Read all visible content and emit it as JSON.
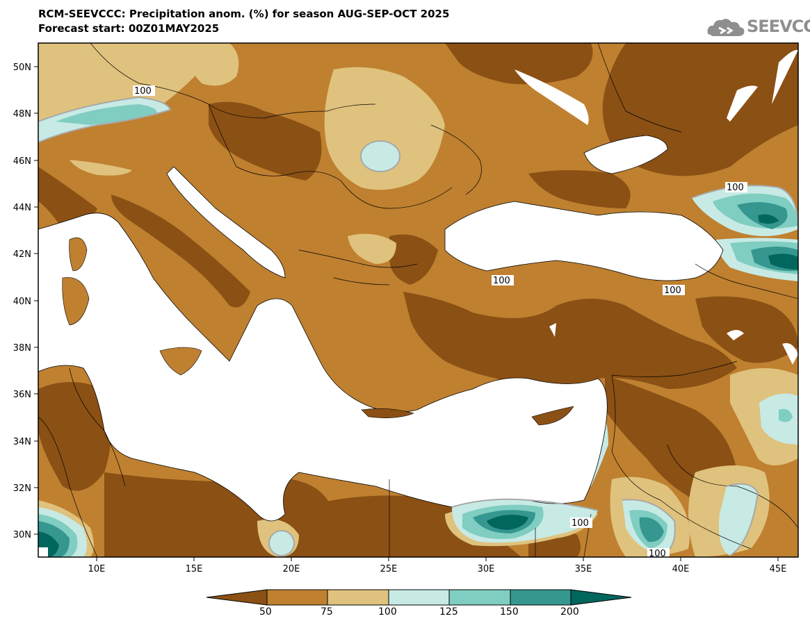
{
  "title": {
    "line1": "RCM-SEEVCCC: Precipitation anom. (%) for season AUG-SEP-OCT 2025",
    "line2": "Forecast start: 00Z01MAY2025"
  },
  "logo": {
    "text": "SEEVCCC"
  },
  "map": {
    "lon_range": [
      7,
      46
    ],
    "lat_range": [
      29,
      51
    ],
    "x_ticks": [
      "10E",
      "15E",
      "20E",
      "25E",
      "30E",
      "35E",
      "40E",
      "45E"
    ],
    "y_ticks": [
      "50N",
      "48N",
      "46N",
      "44N",
      "42N",
      "40N",
      "38N",
      "36N",
      "34N",
      "32N",
      "30N"
    ],
    "contour_labels": [
      "100",
      "100",
      "100",
      "100",
      "100",
      "100",
      "100"
    ]
  },
  "colorbar": {
    "levels": [
      "50",
      "75",
      "100",
      "125",
      "150",
      "200"
    ],
    "colors": [
      "#8b5014",
      "#bf8030",
      "#dfc27d",
      "#c7eae5",
      "#80cdc1",
      "#35978f",
      "#01665e"
    ]
  }
}
